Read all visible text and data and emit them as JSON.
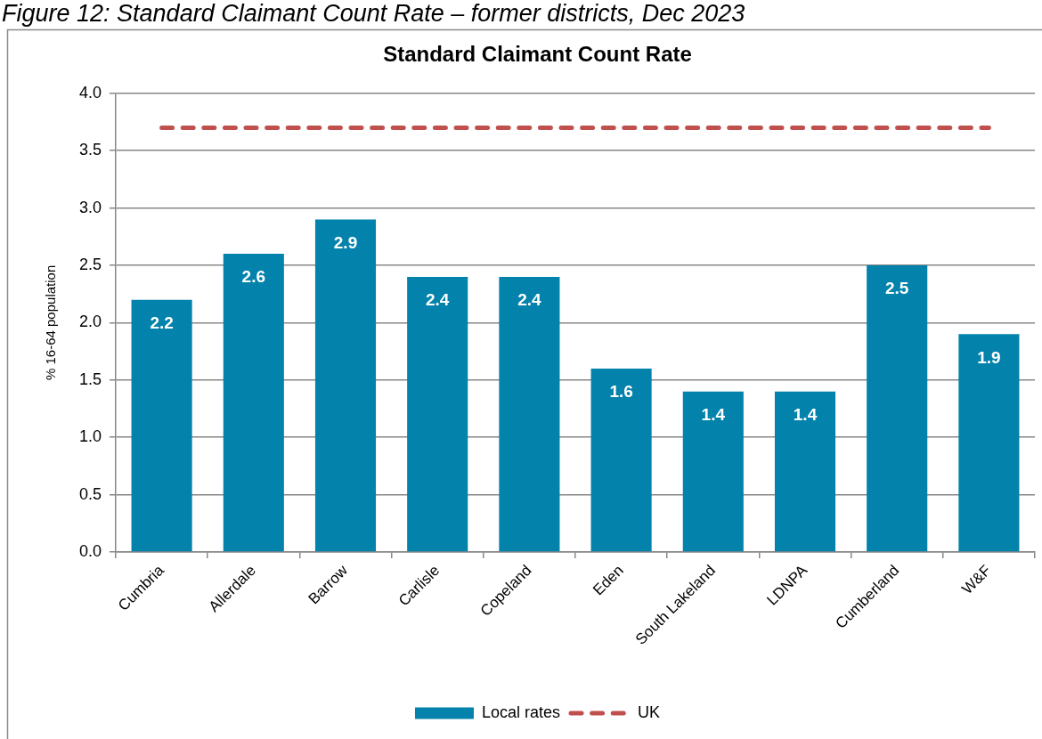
{
  "chart_data": {
    "type": "bar",
    "title": "Standard Claimant Count Rate",
    "ylabel": "% 16-64 population",
    "annotations": [
      "Figure 12: Standard Claimant Count Rate – former districts, Dec 2023"
    ],
    "categories": [
      "Cumbria",
      "Allerdale",
      "Barrow",
      "Carlisle",
      "Copeland",
      "Eden",
      "South Lakeland",
      "LDNPA",
      "Cumberland",
      "W&F"
    ],
    "series": [
      {
        "name": "Local rates",
        "color": "#0382ab",
        "values": [
          2.2,
          2.6,
          2.9,
          2.4,
          2.4,
          1.6,
          1.4,
          1.4,
          2.5,
          1.9
        ],
        "value_labels": [
          "2.2",
          "2.6",
          "2.9",
          "2.4",
          "2.4",
          "1.6",
          "1.4",
          "1.4",
          "2.5",
          "1.9"
        ]
      },
      {
        "name": "UK",
        "type": "line",
        "color": "#c0504d",
        "line_style": "dashed",
        "marker": "none",
        "values": [
          3.7,
          3.7,
          3.7,
          3.7,
          3.7,
          3.7,
          3.7,
          3.7,
          3.7,
          3.7
        ]
      }
    ],
    "ylim": [
      0,
      4
    ],
    "yticks": [
      {
        "value": 0,
        "label": "0.0"
      },
      {
        "value": 0.5,
        "label": "0.5"
      },
      {
        "value": 1,
        "label": "1.0"
      },
      {
        "value": 1.5,
        "label": "1.5"
      },
      {
        "value": 2,
        "label": "2.0"
      },
      {
        "value": 2.5,
        "label": "2.5"
      },
      {
        "value": 3,
        "label": "3.0"
      },
      {
        "value": 3.5,
        "label": "3.5"
      },
      {
        "value": 4,
        "label": "4.0"
      }
    ],
    "grid": "y",
    "legend": "bottom"
  }
}
